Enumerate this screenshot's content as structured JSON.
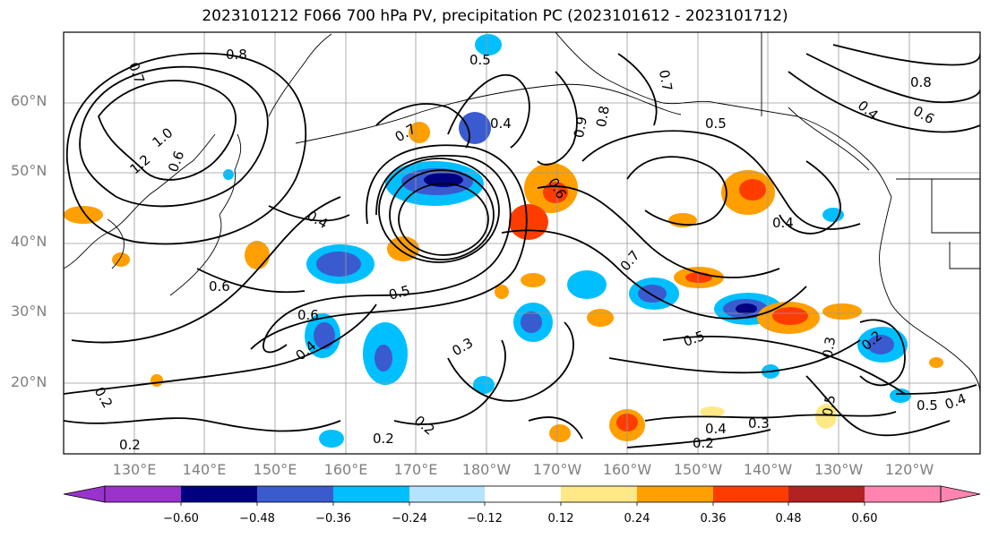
{
  "title": "2023101212 F066 700 hPa PV, precipitation PC (2023101612 - 2023101712)",
  "map": {
    "lat_labels": [
      "60°N",
      "50°N",
      "40°N",
      "30°N",
      "20°N"
    ],
    "lon_labels": [
      "130°E",
      "140°E",
      "150°E",
      "160°E",
      "170°E",
      "180°W",
      "170°W",
      "160°W",
      "150°W",
      "140°W",
      "130°W",
      "120°W"
    ],
    "pv_contour_labels": [
      "0.8",
      "0.7",
      "0.5",
      "0.4",
      "1.0",
      "1.2",
      "0.6",
      "0.8",
      "0.7",
      "0.5",
      "0.8",
      "0.6",
      "0.4",
      "0.7",
      "0.9",
      "0.4",
      "0.6",
      "0.6",
      "0.4",
      "0.5",
      "0.6",
      "0.4",
      "0.7",
      "0.5",
      "0.3",
      "0.2",
      "0.2",
      "0.2",
      "0.2",
      "0.4",
      "0.3",
      "0.2",
      "0.3",
      "0.5",
      "0.5",
      "0.4",
      "0.2"
    ]
  },
  "colorbar": {
    "tick_labels": [
      "−0.60",
      "−0.48",
      "−0.36",
      "−0.24",
      "−0.12",
      "0.12",
      "0.24",
      "0.36",
      "0.48",
      "0.60"
    ],
    "colors": [
      "#9933cc",
      "#000080",
      "#3a5bcf",
      "#00bfff",
      "#b3e3ff",
      "#ffffff",
      "#ffe987",
      "#ff9f00",
      "#ff3c00",
      "#b22222",
      "#ff85b0"
    ]
  },
  "shading_colors": {
    "neg_light": "#b3e3ff",
    "neg_mid": "#00bfff",
    "neg_strong": "#3a5bcf",
    "neg_max": "#000080",
    "pos_light": "#ffe987",
    "pos_mid": "#ff9f00",
    "pos_strong": "#ff3c00"
  }
}
